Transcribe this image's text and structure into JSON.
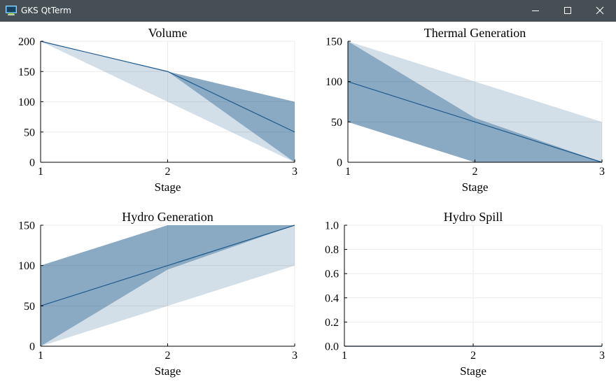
{
  "window": {
    "title": "GKS QtTerm",
    "icons": {
      "app": "terminal-app-icon",
      "minimize": "minimize-icon",
      "maximize": "maximize-icon",
      "close": "close-icon"
    }
  },
  "colors": {
    "titlebar": "#464f56",
    "series": "#1f5a8b",
    "grid": "#ebebeb",
    "axis": "#000000"
  },
  "chart_data": [
    {
      "type": "area",
      "title": "Volume",
      "xlabel": "Stage",
      "ylabel": "",
      "x": [
        1,
        2,
        3
      ],
      "xticks": [
        "1",
        "2",
        "3"
      ],
      "yticks": [
        "0",
        "50",
        "100",
        "150",
        "200"
      ],
      "ylim": [
        0,
        200
      ],
      "grid": true,
      "bands": [
        {
          "lower": [
            200,
            100,
            0
          ],
          "upper": [
            200,
            150,
            100
          ],
          "opacity": 0.2
        },
        {
          "lower": [
            200,
            150,
            0
          ],
          "upper": [
            200,
            150,
            100
          ],
          "opacity": 0.4
        }
      ],
      "line": [
        200,
        150,
        50
      ]
    },
    {
      "type": "area",
      "title": "Thermal Generation",
      "xlabel": "Stage",
      "ylabel": "",
      "x": [
        1,
        2,
        3
      ],
      "xticks": [
        "1",
        "2",
        "3"
      ],
      "yticks": [
        "0",
        "50",
        "100",
        "150"
      ],
      "ylim": [
        0,
        150
      ],
      "grid": true,
      "bands": [
        {
          "lower": [
            50,
            0,
            0
          ],
          "upper": [
            150,
            100,
            50
          ],
          "opacity": 0.2
        },
        {
          "lower": [
            50,
            0,
            0
          ],
          "upper": [
            150,
            55,
            0
          ],
          "opacity": 0.4
        }
      ],
      "line": [
        100,
        50,
        0
      ]
    },
    {
      "type": "area",
      "title": "Hydro Generation",
      "xlabel": "Stage",
      "ylabel": "",
      "x": [
        1,
        2,
        3
      ],
      "xticks": [
        "1",
        "2",
        "3"
      ],
      "yticks": [
        "0",
        "50",
        "100",
        "150"
      ],
      "ylim": [
        0,
        150
      ],
      "grid": true,
      "bands": [
        {
          "lower": [
            0,
            50,
            100
          ],
          "upper": [
            100,
            150,
            150
          ],
          "opacity": 0.2
        },
        {
          "lower": [
            0,
            95,
            150
          ],
          "upper": [
            100,
            150,
            150
          ],
          "opacity": 0.4
        }
      ],
      "line": [
        50,
        100,
        150
      ]
    },
    {
      "type": "area",
      "title": "Hydro Spill",
      "xlabel": "Stage",
      "ylabel": "",
      "x": [
        1,
        2,
        3
      ],
      "xticks": [
        "1",
        "2",
        "3"
      ],
      "yticks": [
        "0.0",
        "0.2",
        "0.4",
        "0.6",
        "0.8",
        "1.0"
      ],
      "ylim": [
        0,
        1
      ],
      "grid": true,
      "bands": [
        {
          "lower": [
            0,
            0,
            0
          ],
          "upper": [
            0,
            0,
            0
          ],
          "opacity": 0.2
        },
        {
          "lower": [
            0,
            0,
            0
          ],
          "upper": [
            0,
            0,
            0
          ],
          "opacity": 0.4
        }
      ],
      "line": [
        0,
        0,
        0
      ]
    }
  ]
}
